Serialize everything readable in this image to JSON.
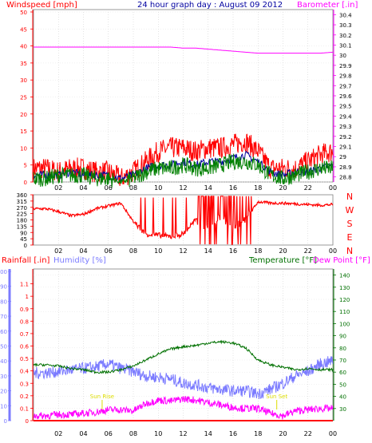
{
  "title": "24 hour graph day : August 09 2012",
  "colors": {
    "windspeed": "#ff0000",
    "gust": "#ff0000",
    "avg_wind": "#008000",
    "wind_trend": "#0000a0",
    "barometer": "#ff00ff",
    "direction": "#ff0000",
    "rainfall": "#ff0000",
    "humidity": "#7b7bff",
    "temperature": "#007000",
    "dewpoint": "#ff00ff",
    "sunrise": "#dddd00",
    "sunset": "#dddd00"
  },
  "panel1": {
    "left_label": "Windspeed [mph]",
    "right_label": "Barometer [.in]"
  },
  "panel2": {
    "compass": [
      "N",
      "W",
      "S",
      "E",
      "N"
    ]
  },
  "panel3": {
    "left_label_1": "Rainfall [.in]",
    "left_label_2": "Humidity [%]",
    "right_label_1": "Temperature [°F]",
    "right_label_2": "Dew Point [°F]",
    "sunrise_label": "Sun Rise",
    "sunset_label": "Sun Set"
  },
  "chart_data": [
    {
      "type": "line",
      "title": "24 hour graph day : August 09 2012",
      "x": [
        1,
        2,
        3,
        4,
        5,
        6,
        7,
        8,
        9,
        10,
        11,
        12,
        13,
        14,
        15,
        16,
        17,
        18,
        19,
        20,
        21,
        22,
        23,
        24
      ],
      "x_tick_labels": [
        "02",
        "04",
        "06",
        "08",
        "10",
        "12",
        "14",
        "16",
        "18",
        "20",
        "22",
        "00"
      ],
      "ylabel": "Windspeed [mph]",
      "ylim": [
        0,
        50
      ],
      "y_ticks": [
        0,
        5,
        10,
        15,
        20,
        25,
        30,
        35,
        40,
        45,
        50
      ],
      "y2label": "Barometer [.in]",
      "y2lim": [
        28.75,
        30.45
      ],
      "y2_ticks": [
        "28.8",
        "28.9",
        "29",
        "29.1",
        "29.2",
        "29.3",
        "29.4",
        "29.5",
        "29.6",
        "29.7",
        "29.8",
        "29.9",
        "30",
        "30.1",
        "30.2",
        "30.3",
        "30.4"
      ],
      "series": [
        {
          "name": "Windspeed [mph]",
          "axis": "left",
          "values": [
            4,
            3,
            4,
            4,
            3,
            3,
            1,
            3,
            6,
            9,
            10,
            10,
            9,
            10,
            10,
            11,
            12,
            9,
            4,
            4,
            4,
            6,
            8,
            9
          ]
        },
        {
          "axis": "left",
          "values": [
            1,
            2,
            2,
            2,
            1,
            1,
            0,
            1,
            3,
            4,
            4,
            5,
            4,
            4,
            5,
            6,
            6,
            5,
            2,
            1,
            2,
            3,
            4,
            4
          ]
        },
        {
          "axis": "left",
          "values": [
            2,
            2,
            3,
            2,
            2,
            2,
            1,
            2,
            4,
            5,
            5,
            6,
            5,
            6,
            6,
            7,
            8,
            6,
            3,
            2,
            3,
            3,
            4,
            5
          ]
        },
        {
          "name": "Barometer [.in]",
          "axis": "right",
          "values": [
            30.08,
            30.08,
            30.08,
            30.08,
            30.08,
            30.08,
            30.08,
            30.08,
            30.08,
            30.08,
            30.08,
            30.07,
            30.07,
            30.06,
            30.05,
            30.04,
            30.03,
            30.02,
            30.02,
            30.02,
            30.02,
            30.02,
            30.02,
            30.03
          ]
        }
      ]
    },
    {
      "type": "line",
      "x": [
        1,
        2,
        3,
        4,
        5,
        6,
        7,
        8,
        9,
        10,
        11,
        12,
        13,
        14,
        15,
        16,
        17,
        18,
        19,
        20,
        21,
        22,
        23,
        24
      ],
      "x_tick_labels": [
        "02",
        "04",
        "06",
        "08",
        "10",
        "12",
        "14",
        "16",
        "18",
        "20",
        "22",
        "00"
      ],
      "ylim": [
        0,
        360
      ],
      "y_ticks": [
        0,
        45,
        90,
        135,
        180,
        225,
        270,
        315,
        360
      ],
      "series": [
        {
          "name": "direction",
          "values": [
            260,
            240,
            210,
            220,
            260,
            280,
            300,
            170,
            80,
            70,
            60,
            80,
            180,
            120,
            200,
            130,
            180,
            310,
            300,
            300,
            295,
            290,
            285,
            290
          ]
        }
      ]
    },
    {
      "type": "line",
      "x": [
        1,
        2,
        3,
        4,
        5,
        6,
        7,
        8,
        9,
        10,
        11,
        12,
        13,
        14,
        15,
        16,
        17,
        18,
        19,
        20,
        21,
        22,
        23,
        24
      ],
      "x_tick_labels": [
        "02",
        "04",
        "06",
        "08",
        "10",
        "12",
        "14",
        "16",
        "18",
        "20",
        "22",
        "00"
      ],
      "ylabel": "Rainfall [.in] / Humidity [%]",
      "ylim_rain": [
        0,
        1.2
      ],
      "y_rain_ticks": [
        "0",
        "0.1",
        "0.2",
        "0.3",
        "0.4",
        "0.5",
        "0.6",
        "0.7",
        "0.8",
        "0.9",
        "1",
        "1.1"
      ],
      "ylim_humidity": [
        0,
        100
      ],
      "y_humidity_ticks": [
        0,
        10,
        20,
        30,
        40,
        50,
        60,
        70,
        80,
        90,
        100
      ],
      "y2label": "Temperature [°F] / Dew Point [°F]",
      "y2lim": [
        20,
        145
      ],
      "y2_ticks": [
        30,
        40,
        50,
        60,
        70,
        80,
        90,
        100,
        110,
        120,
        130,
        140
      ],
      "series": [
        {
          "name": "Temperature [°F]",
          "axis": "right",
          "values": [
            66,
            65,
            63,
            62,
            60,
            60,
            62,
            65,
            70,
            75,
            79,
            81,
            82,
            84,
            85,
            84,
            80,
            70,
            66,
            64,
            62,
            63,
            62,
            62
          ]
        },
        {
          "name": "Dew Point [°F]",
          "axis": "right",
          "values": [
            24,
            25,
            25,
            26,
            27,
            29,
            29,
            28,
            34,
            37,
            36,
            38,
            37,
            35,
            33,
            31,
            30,
            30,
            26,
            24,
            28,
            29,
            30,
            30
          ]
        },
        {
          "name": "Humidity [%]",
          "axis": "left",
          "values": [
            32,
            33,
            34,
            35,
            36,
            38,
            35,
            33,
            30,
            29,
            28,
            25,
            24,
            22,
            21,
            20,
            20,
            18,
            21,
            25,
            30,
            33,
            38,
            40
          ]
        },
        {
          "name": "Rainfall [.in]",
          "axis": "left",
          "values": [
            0,
            0,
            0,
            0,
            0,
            0,
            0,
            0,
            0,
            0,
            0,
            0,
            0,
            0,
            0,
            0,
            0,
            0,
            0,
            0,
            0,
            0,
            0,
            0
          ]
        }
      ],
      "annotations": [
        {
          "text": "Sun Rise",
          "x": 5.5
        },
        {
          "text": "Sun Set",
          "x": 19.5
        }
      ]
    }
  ]
}
